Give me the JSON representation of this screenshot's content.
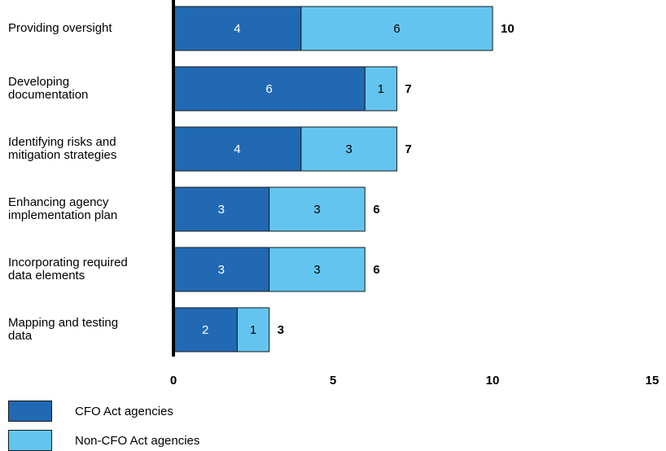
{
  "chart_data": {
    "type": "bar",
    "orientation": "horizontal",
    "stacked": true,
    "categories": [
      "Providing oversight",
      "Developing documentation",
      "Identifying risks and mitigation strategies",
      "Enhancing agency implementation plan",
      "Incorporating required data elements",
      "Mapping and testing data"
    ],
    "category_lines": [
      [
        "Providing oversight"
      ],
      [
        "Developing",
        "documentation"
      ],
      [
        "Identifying risks and",
        "mitigation strategies"
      ],
      [
        "Enhancing agency",
        "implementation plan"
      ],
      [
        "Incorporating required",
        "data elements"
      ],
      [
        "Mapping and testing",
        "data"
      ]
    ],
    "series": [
      {
        "name": "CFO Act agencies",
        "color": "#2169b3",
        "values": [
          4,
          6,
          4,
          3,
          3,
          2
        ]
      },
      {
        "name": "Non-CFO Act agencies",
        "color": "#63c5ef",
        "values": [
          6,
          1,
          3,
          3,
          3,
          1
        ]
      }
    ],
    "totals": [
      10,
      7,
      7,
      6,
      6,
      3
    ],
    "xlim": [
      0,
      15
    ],
    "xticks": [
      "0",
      "5",
      "10",
      "15"
    ],
    "grid": false,
    "legend_position": "bottom-left",
    "title": "",
    "xlabel": "",
    "ylabel": ""
  }
}
